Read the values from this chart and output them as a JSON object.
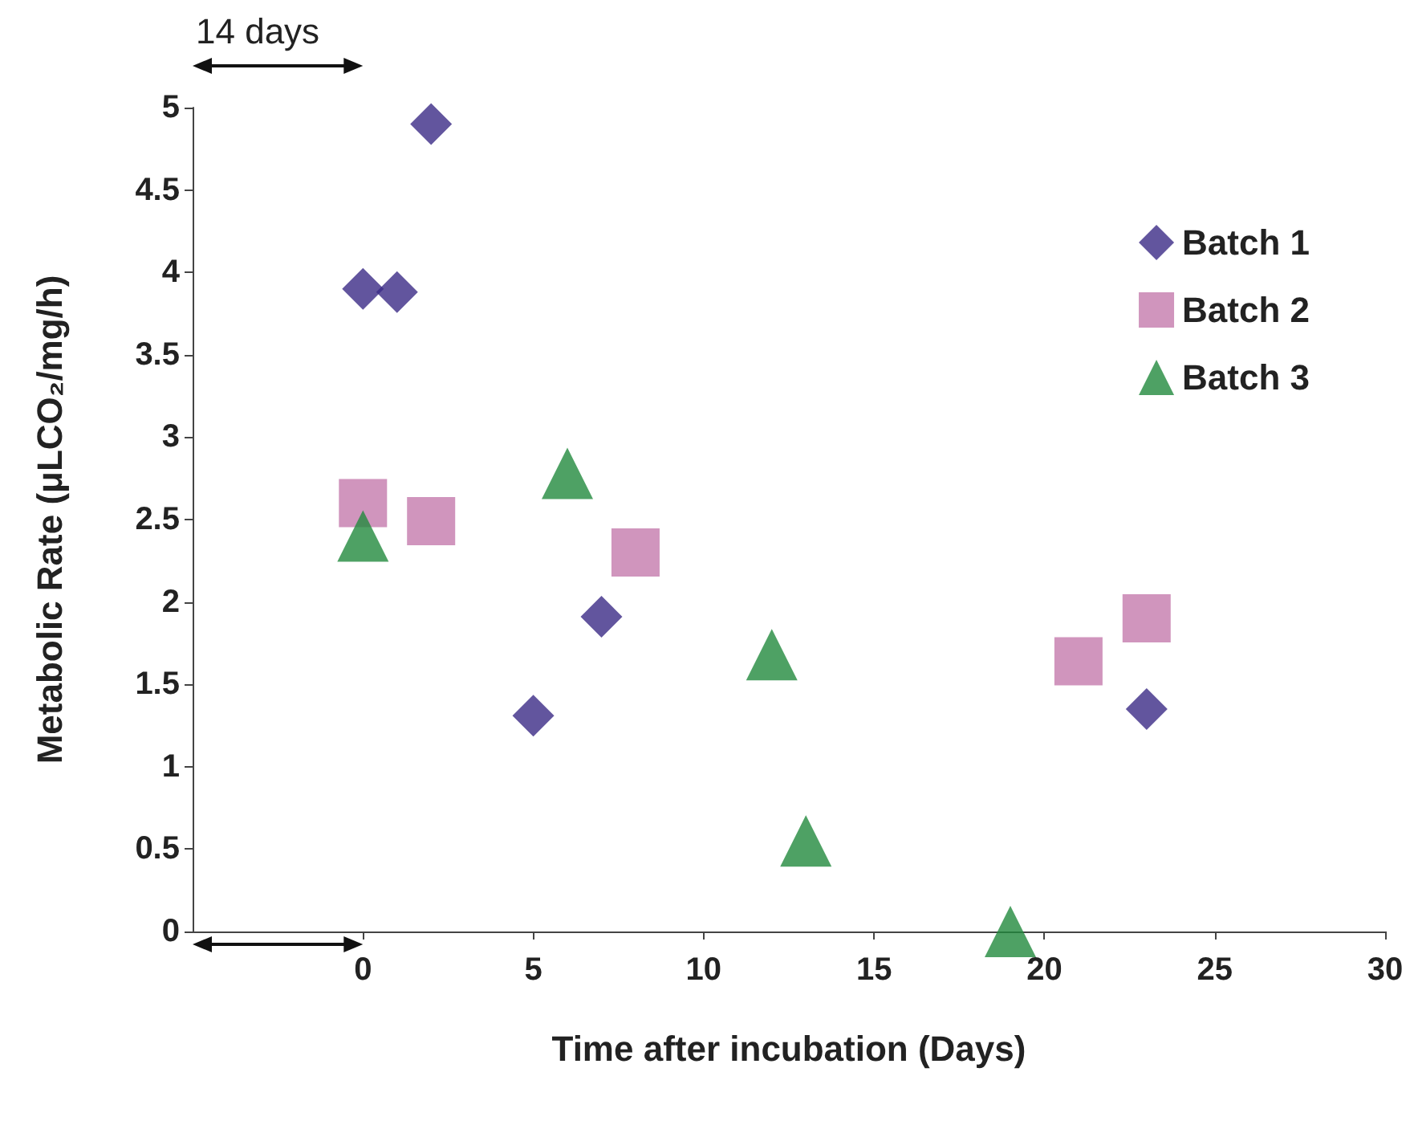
{
  "chart_data": {
    "type": "scatter",
    "xlabel": "Time after incubation (Days)",
    "ylabel": "Metabolic Rate (μLCO₂/mg/h)",
    "annotations": [
      "14 days"
    ],
    "xlim": [
      -5,
      30
    ],
    "xticks": [
      0,
      5,
      10,
      15,
      20,
      25,
      30
    ],
    "ylim": [
      0,
      5
    ],
    "yticks": [
      0,
      0.5,
      1,
      1.5,
      2,
      2.5,
      3,
      3.5,
      4,
      4.5,
      5
    ],
    "grid": false,
    "legend": "top right",
    "series": [
      {
        "name": "Batch 1",
        "color": "#3b2a86",
        "marker": "diamond",
        "x": [
          0,
          1,
          2,
          5,
          7,
          23
        ],
        "values": [
          3.9,
          3.88,
          4.9,
          1.31,
          1.91,
          1.35
        ]
      },
      {
        "name": "Batch 2",
        "color": "#c47aad",
        "marker": "square",
        "x": [
          0,
          2,
          8,
          21,
          23
        ],
        "values": [
          2.6,
          2.49,
          2.3,
          1.64,
          1.9
        ]
      },
      {
        "name": "Batch 3",
        "color": "#22893d",
        "marker": "triangle",
        "x": [
          0,
          6,
          12,
          13,
          19
        ],
        "values": [
          2.4,
          2.78,
          1.68,
          0.55,
          0
        ]
      }
    ]
  }
}
